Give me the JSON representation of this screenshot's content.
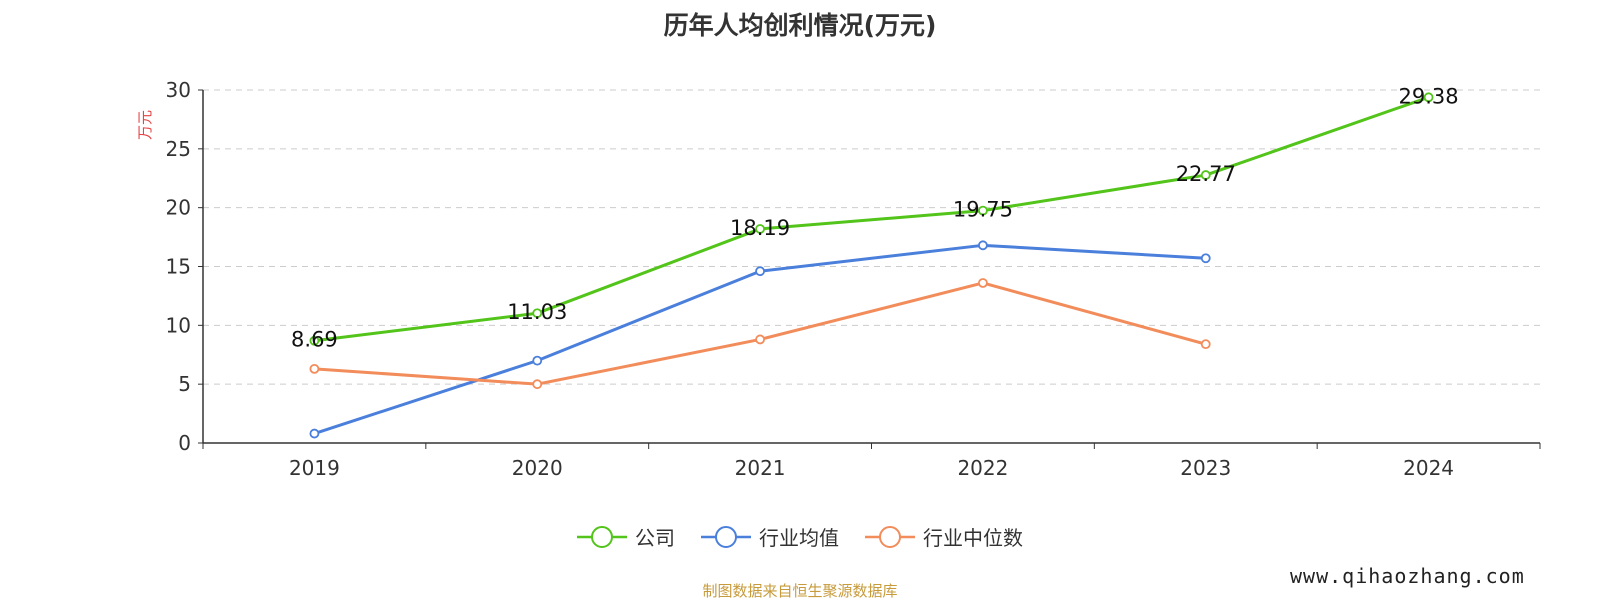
{
  "chart_data": {
    "type": "line",
    "title": "历年人均创利情况(万元)",
    "ylabel": "万元",
    "xlabel": "",
    "categories": [
      "2019",
      "2020",
      "2021",
      "2022",
      "2023",
      "2024"
    ],
    "ylim": [
      0,
      30
    ],
    "yticks": [
      "0",
      "5",
      "10",
      "15",
      "20",
      "25",
      "30"
    ],
    "grid": "horizontal dashed",
    "legend_position": "bottom",
    "series": [
      {
        "name": "公司",
        "color": "#52c41a",
        "values": [
          8.69,
          11.03,
          18.19,
          19.75,
          22.77,
          29.38
        ],
        "labels": [
          "8.69",
          "11.03",
          "18.19",
          "19.75",
          "22.77",
          "29.38"
        ]
      },
      {
        "name": "行业均值",
        "color": "#4a7fdc",
        "values": [
          0.8,
          7.0,
          14.6,
          16.8,
          15.7,
          null
        ]
      },
      {
        "name": "行业中位数",
        "color": "#f28c5a",
        "values": [
          6.3,
          5.0,
          8.8,
          13.6,
          8.4,
          null
        ]
      }
    ]
  },
  "source": "制图数据来自恒生聚源数据库",
  "watermark": "www.qihaozhang.com"
}
